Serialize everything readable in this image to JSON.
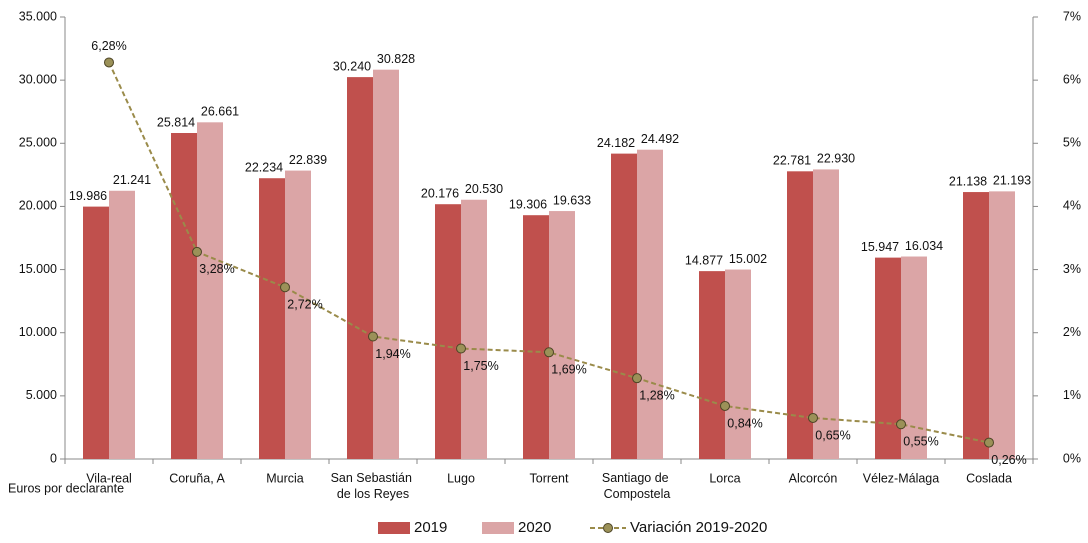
{
  "chart_data": {
    "type": "bar",
    "categories": [
      "Vila-real",
      "Coruña, A",
      "Murcia",
      "San Sebastián de los Reyes",
      "Lugo",
      "Torrent",
      "Santiago de Compostela",
      "Lorca",
      "Alcorcón",
      "Vélez-Málaga",
      "Coslada"
    ],
    "series": [
      {
        "name": "2019",
        "type": "bar",
        "color": "#c0504d",
        "values": [
          19986,
          25814,
          22234,
          30240,
          20176,
          19306,
          24182,
          14877,
          22781,
          15947,
          21138
        ],
        "value_labels": [
          "19.986",
          "25.814",
          "22.234",
          "30.240",
          "20.176",
          "19.306",
          "24.182",
          "14.877",
          "22.781",
          "15.947",
          "21.138"
        ]
      },
      {
        "name": "2020",
        "type": "bar",
        "color": "#dba5a6",
        "values": [
          21241,
          26661,
          22839,
          30828,
          20530,
          19633,
          24492,
          15002,
          22930,
          16034,
          21193
        ],
        "value_labels": [
          "21.241",
          "26.661",
          "22.839",
          "30.828",
          "20.530",
          "19.633",
          "24.492",
          "15.002",
          "22.930",
          "16.034",
          "21.193"
        ]
      },
      {
        "name": "Variación 2019-2020",
        "type": "line",
        "axis": "y2",
        "color": "#9a8b4a",
        "dashed": true,
        "values": [
          6.28,
          3.28,
          2.72,
          1.94,
          1.75,
          1.69,
          1.28,
          0.84,
          0.65,
          0.55,
          0.26
        ],
        "value_labels": [
          "6,28%",
          "3,28%",
          "2,72%",
          "1,94%",
          "1,75%",
          "1,69%",
          "1,28%",
          "0,84%",
          "0,65%",
          "0,55%",
          "0,26%"
        ]
      }
    ],
    "note": "Euros por declarante",
    "ylim": [
      0,
      35000
    ],
    "yticks": [
      0,
      {
        "value": 5000,
        "label": "5.000"
      },
      {
        "value": 10000,
        "label": "10.000"
      },
      {
        "value": 15000,
        "label": "15.000"
      },
      {
        "value": 20000,
        "label": "20.000"
      },
      {
        "value": 25000,
        "label": "25.000"
      },
      {
        "value": 30000,
        "label": "30.000"
      },
      {
        "value": 35000,
        "label": "35.000"
      }
    ],
    "y2lim": [
      0,
      7
    ],
    "y2ticks": [
      {
        "value": 0,
        "label": "0%"
      },
      {
        "value": 1,
        "label": "1%"
      },
      {
        "value": 2,
        "label": "2%"
      },
      {
        "value": 3,
        "label": "3%"
      },
      {
        "value": 4,
        "label": "4%"
      },
      {
        "value": 5,
        "label": "5%"
      },
      {
        "value": 6,
        "label": "6%"
      },
      {
        "value": 7,
        "label": "7%"
      }
    ],
    "legend": "bottom",
    "grid": false
  }
}
